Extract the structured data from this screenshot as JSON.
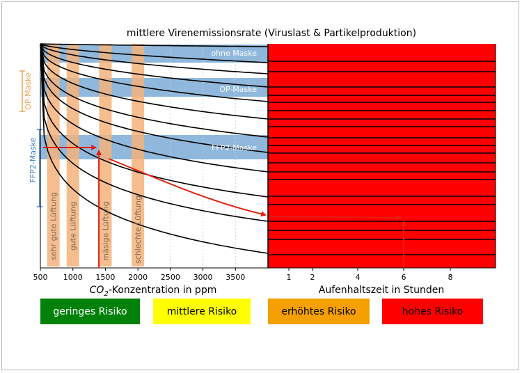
{
  "chart_data": {
    "type": "line",
    "title": "mittlere Virenemissionsrate (Viruslast & Partikelproduktion)",
    "left_panel": {
      "xlabel_prefix": "CO",
      "xlabel_sub": "2",
      "xlabel_suffix": "-Konzentration in ppm",
      "xlim": [
        500,
        4000
      ],
      "xticks": [
        "500",
        "1000",
        "1500",
        "2000",
        "2500",
        "3000",
        "3500"
      ],
      "xtick_values": [
        500,
        1000,
        1500,
        2000,
        2500,
        3000,
        3500
      ],
      "mask_bands": [
        {
          "label": "ohne Maske"
        },
        {
          "label": "OP-Maske"
        },
        {
          "label": "FFP2-Maske"
        }
      ],
      "ventilation_bands": [
        {
          "label": "sehr gute Lüftung",
          "co2": 700
        },
        {
          "label": "gute Lüftung",
          "co2": 1000
        },
        {
          "label": "mäsige Lüftung",
          "co2": 1500
        },
        {
          "label": "schlechte Lüftung",
          "co2": 2000
        }
      ],
      "side_labels": [
        {
          "label": "OP-Maske",
          "color": "#f0a050"
        },
        {
          "label": "FFP2-Maske",
          "color": "#3a7dc0"
        }
      ],
      "emission_curves": 12
    },
    "right_panel": {
      "xlabel": "Aufenhaltszeit in Stunden",
      "xlim": [
        0,
        10
      ],
      "xticks": [
        "1",
        "2",
        "4",
        "6",
        "8"
      ],
      "xtick_values": [
        1,
        2,
        4,
        6,
        8
      ],
      "risk_zones": [
        "geringes Risiko",
        "mittlere Risiko",
        "erhöhtes Risiko",
        "hohes Risiko"
      ]
    },
    "example_path": {
      "co2_ppm": 1400,
      "mask": "FFP2-Maske",
      "hours": 6,
      "color": "#e02010"
    }
  },
  "legend": {
    "green": "geringes Risiko",
    "yellow": "mittlere Risiko",
    "orange": "erhöhtes Risiko",
    "red": "hohes Risiko"
  },
  "colors": {
    "green": "#00820a",
    "yellow": "#ffff00",
    "orange": "#f5a000",
    "red": "#ff0000",
    "mask_band": "#8fb8dc",
    "ventilation_band": "#f5b27a",
    "arrow": "#e02010"
  }
}
